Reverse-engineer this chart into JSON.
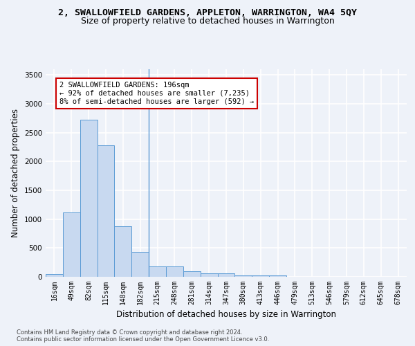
{
  "title": "2, SWALLOWFIELD GARDENS, APPLETON, WARRINGTON, WA4 5QY",
  "subtitle": "Size of property relative to detached houses in Warrington",
  "xlabel": "Distribution of detached houses by size in Warrington",
  "ylabel": "Number of detached properties",
  "footer_line1": "Contains HM Land Registry data © Crown copyright and database right 2024.",
  "footer_line2": "Contains public sector information licensed under the Open Government Licence v3.0.",
  "bar_labels": [
    "16sqm",
    "49sqm",
    "82sqm",
    "115sqm",
    "148sqm",
    "182sqm",
    "215sqm",
    "248sqm",
    "281sqm",
    "314sqm",
    "347sqm",
    "380sqm",
    "413sqm",
    "446sqm",
    "479sqm",
    "513sqm",
    "546sqm",
    "579sqm",
    "612sqm",
    "645sqm",
    "678sqm"
  ],
  "bar_values": [
    50,
    1120,
    2730,
    2280,
    880,
    430,
    175,
    175,
    95,
    60,
    55,
    30,
    30,
    20,
    0,
    0,
    0,
    0,
    0,
    0,
    0
  ],
  "bar_color": "#c8d9f0",
  "bar_edge_color": "#5b9bd5",
  "annotation_text": "2 SWALLOWFIELD GARDENS: 196sqm\n← 92% of detached houses are smaller (7,235)\n8% of semi-detached houses are larger (592) →",
  "annotation_box_color": "#ffffff",
  "annotation_box_edge_color": "#cc0000",
  "vline_x_index": 5.5,
  "ylim": [
    0,
    3600
  ],
  "yticks": [
    0,
    500,
    1000,
    1500,
    2000,
    2500,
    3000,
    3500
  ],
  "background_color": "#eef2f9",
  "grid_color": "#ffffff",
  "title_fontsize": 9.5,
  "subtitle_fontsize": 9,
  "axis_label_fontsize": 8.5,
  "tick_fontsize": 7,
  "annotation_fontsize": 7.5,
  "footer_fontsize": 6
}
